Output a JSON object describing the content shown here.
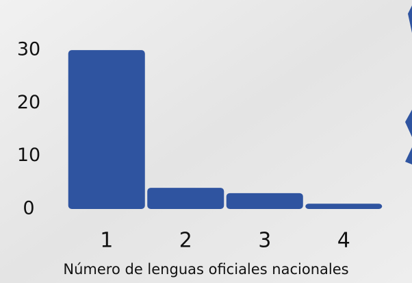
{
  "chart_data": {
    "type": "bar",
    "x_label": "Número de lenguas oficiales nacionales",
    "categories": [
      "1",
      "2",
      "3",
      "4"
    ],
    "values": [
      30,
      4,
      3,
      1
    ],
    "color": "#2f54a0",
    "ylim": [
      0,
      33
    ],
    "yticks": [
      0,
      10,
      20,
      30
    ],
    "grid": false
  }
}
